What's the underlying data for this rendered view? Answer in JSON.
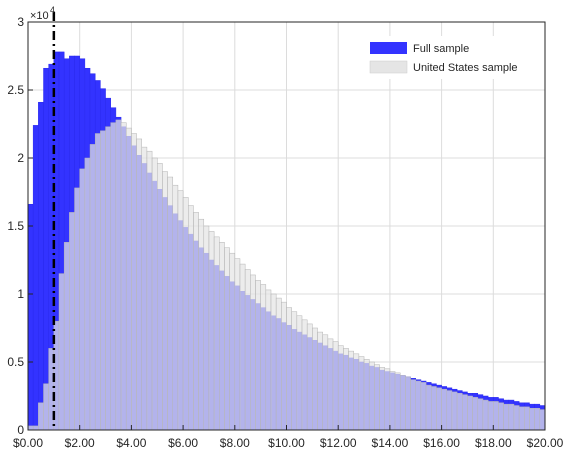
{
  "chart_data": {
    "type": "bar",
    "subtype": "overlaid-histogram",
    "y_exponent_label": "×10",
    "y_exponent_power": "4",
    "xlim": [
      0,
      20
    ],
    "ylim": [
      0,
      3
    ],
    "x_ticks": [
      0,
      2,
      4,
      6,
      8,
      10,
      12,
      14,
      16,
      18,
      20
    ],
    "x_tick_labels": [
      "$0.00",
      "$2.00",
      "$4.00",
      "$6.00",
      "$8.00",
      "$10.00",
      "$12.00",
      "$14.00",
      "$16.00",
      "$18.00",
      "$20.00"
    ],
    "y_ticks": [
      0,
      0.5,
      1,
      1.5,
      2,
      2.5,
      3
    ],
    "y_tick_labels": [
      "0",
      "0.5",
      "1",
      "1.5",
      "2",
      "2.5",
      "3"
    ],
    "grid": true,
    "legend_position": "top-right",
    "bin_width": 0.2,
    "vertical_line": {
      "x": 1.0,
      "style": "dash-dot",
      "color": "#000000"
    },
    "series": [
      {
        "name": "Full sample",
        "color": "#3333ff",
        "values": [
          1.66,
          2.24,
          2.41,
          2.66,
          2.69,
          2.78,
          2.78,
          2.73,
          2.75,
          2.75,
          2.73,
          2.66,
          2.62,
          2.57,
          2.51,
          2.44,
          2.37,
          2.3,
          2.23,
          2.16,
          2.09,
          2.02,
          1.96,
          1.89,
          1.83,
          1.77,
          1.71,
          1.65,
          1.59,
          1.54,
          1.49,
          1.44,
          1.39,
          1.34,
          1.3,
          1.25,
          1.21,
          1.17,
          1.13,
          1.09,
          1.06,
          1.02,
          0.99,
          0.96,
          0.93,
          0.9,
          0.87,
          0.84,
          0.82,
          0.79,
          0.77,
          0.74,
          0.72,
          0.7,
          0.68,
          0.66,
          0.64,
          0.62,
          0.6,
          0.58,
          0.56,
          0.55,
          0.53,
          0.52,
          0.5,
          0.49,
          0.47,
          0.46,
          0.44,
          0.43,
          0.42,
          0.41,
          0.4,
          0.39,
          0.38,
          0.37,
          0.36,
          0.35,
          0.34,
          0.33,
          0.32,
          0.31,
          0.3,
          0.29,
          0.28,
          0.27,
          0.27,
          0.26,
          0.25,
          0.24,
          0.24,
          0.23,
          0.22,
          0.22,
          0.21,
          0.2,
          0.2,
          0.19,
          0.19,
          0.18
        ]
      },
      {
        "name": "United States sample",
        "color": "#e5e5e5",
        "values": [
          0.03,
          0.03,
          0.2,
          0.34,
          0.6,
          0.8,
          1.15,
          1.38,
          1.6,
          1.78,
          1.92,
          2.0,
          2.1,
          2.18,
          2.2,
          2.23,
          2.26,
          2.28,
          2.26,
          2.22,
          2.18,
          2.14,
          2.08,
          2.05,
          2.0,
          1.96,
          1.9,
          1.86,
          1.8,
          1.76,
          1.71,
          1.65,
          1.6,
          1.55,
          1.5,
          1.46,
          1.42,
          1.38,
          1.34,
          1.3,
          1.26,
          1.22,
          1.18,
          1.14,
          1.1,
          1.07,
          1.03,
          1.0,
          0.97,
          0.94,
          0.9,
          0.87,
          0.84,
          0.81,
          0.78,
          0.75,
          0.72,
          0.7,
          0.67,
          0.65,
          0.62,
          0.6,
          0.58,
          0.56,
          0.54,
          0.52,
          0.5,
          0.48,
          0.46,
          0.45,
          0.43,
          0.42,
          0.4,
          0.39,
          0.37,
          0.36,
          0.35,
          0.33,
          0.32,
          0.31,
          0.3,
          0.29,
          0.28,
          0.27,
          0.26,
          0.25,
          0.24,
          0.23,
          0.22,
          0.21,
          0.21,
          0.2,
          0.19,
          0.19,
          0.18,
          0.17,
          0.17,
          0.16,
          0.16,
          0.15
        ]
      }
    ]
  }
}
